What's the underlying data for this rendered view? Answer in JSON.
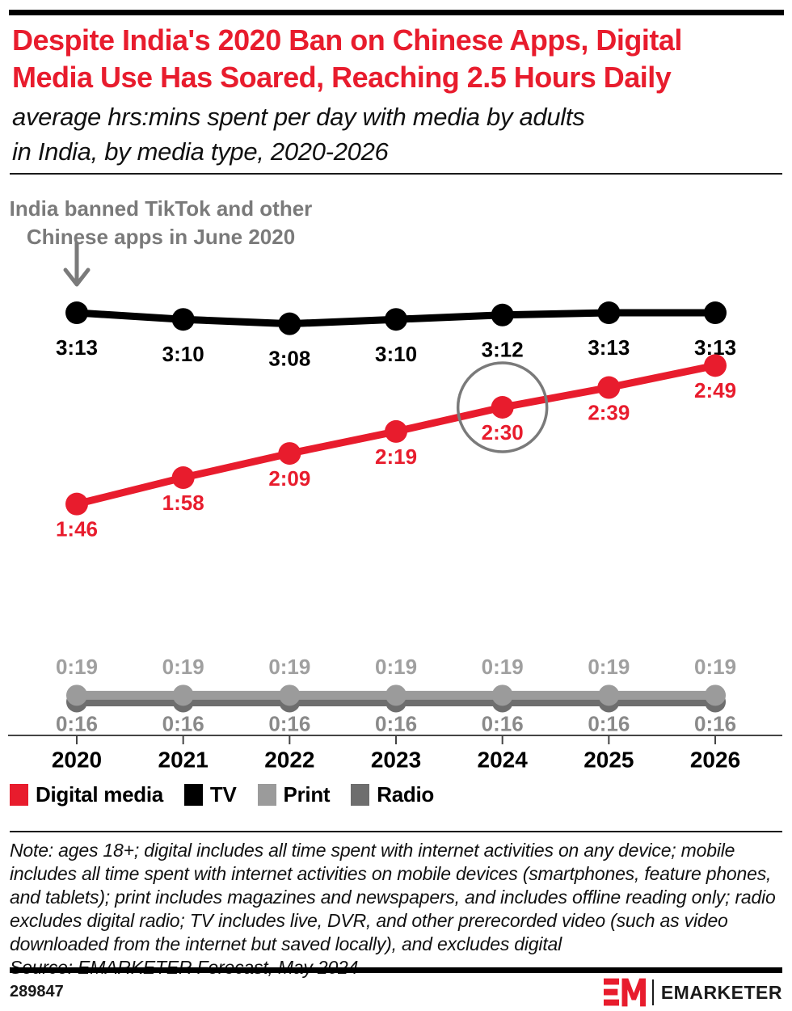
{
  "header": {
    "title_lines": [
      "Despite India's 2020 Ban on Chinese Apps, Digital",
      "Media Use Has Soared, Reaching 2.5 Hours Daily"
    ],
    "subtitle_lines": [
      "average hrs:mins spent per day with media by adults",
      "in India, by media type, 2020-2026"
    ]
  },
  "annotation": {
    "line1": "India banned TikTok and other",
    "line2": "Chinese apps in June 2020"
  },
  "chart_data": {
    "type": "line",
    "title": "average hrs:mins spent per day with media by adults in India, by media type, 2020-2026",
    "x": [
      "2020",
      "2021",
      "2022",
      "2023",
      "2024",
      "2025",
      "2026"
    ],
    "value_format": "h:mm",
    "grid": false,
    "legend_position": "bottom",
    "series": [
      {
        "name": "Digital media",
        "color": "#e81c2d",
        "values": [
          "1:46",
          "1:58",
          "2:09",
          "2:19",
          "2:30",
          "2:39",
          "2:49"
        ]
      },
      {
        "name": "TV",
        "color": "#000000",
        "values": [
          "3:13",
          "3:10",
          "3:08",
          "3:10",
          "3:12",
          "3:13",
          "3:13"
        ]
      },
      {
        "name": "Print",
        "color": "#9b9b9b",
        "values": [
          "0:19",
          "0:19",
          "0:19",
          "0:19",
          "0:19",
          "0:19",
          "0:19"
        ]
      },
      {
        "name": "Radio",
        "color": "#6e6e6e",
        "values": [
          "0:16",
          "0:16",
          "0:16",
          "0:16",
          "0:16",
          "0:16",
          "0:16"
        ]
      }
    ],
    "highlight": {
      "series": "Digital media",
      "x": "2024",
      "value": "2:30"
    }
  },
  "note": {
    "text": "Note: ages 18+; digital includes all time spent with internet activities on any device; mobile includes all time spent with internet activities on mobile devices (smartphones, feature phones, and tablets); print includes magazines and newspapers, and includes offline reading only; radio excludes digital radio; TV includes live, DVR, and other prerecorded video (such as video downloaded from the internet but saved locally), and excludes digital",
    "source": "Source: EMARKETER Forecast, May 2024"
  },
  "footer": {
    "chart_id": "289847",
    "brand": "EMARKETER"
  },
  "colors": {
    "accent_red": "#e81c2d",
    "annotation_gray": "#7a7a7a"
  }
}
